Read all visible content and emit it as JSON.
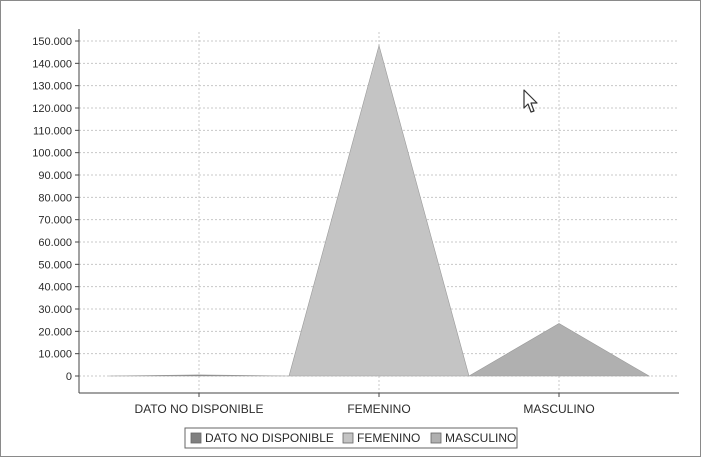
{
  "chart_data": {
    "type": "area",
    "categories": [
      "DATO NO DISPONIBLE",
      "FEMENINO",
      "MASCULINO"
    ],
    "values": [
      500,
      148000,
      23500
    ],
    "series_colors": [
      "#808080",
      "#c4c4c4",
      "#b0b0b0"
    ],
    "ylim": [
      0,
      150000
    ],
    "yticks": [
      "0",
      "10.000",
      "20.000",
      "30.000",
      "40.000",
      "50.000",
      "60.000",
      "70.000",
      "80.000",
      "90.000",
      "100.000",
      "110.000",
      "120.000",
      "130.000",
      "140.000",
      "150.000"
    ],
    "grid": true,
    "legend_position": "bottom-center",
    "legend": [
      "DATO NO DISPONIBLE",
      "FEMENINO",
      "MASCULINO"
    ]
  },
  "cursor_icon": "mouse-pointer-icon"
}
